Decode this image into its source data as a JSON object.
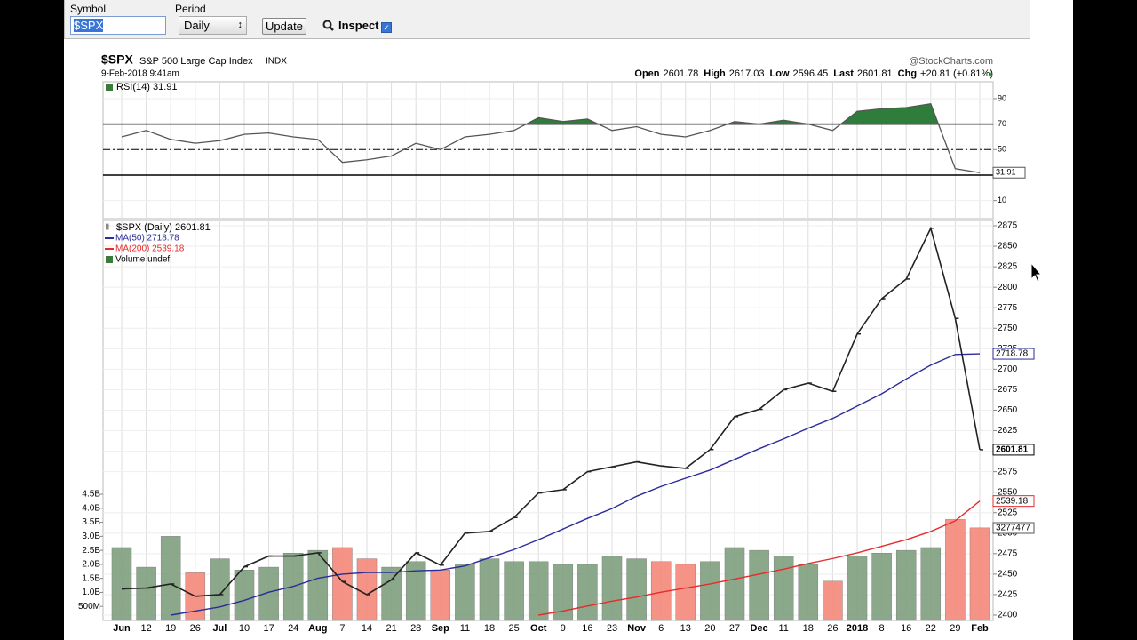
{
  "toolbar": {
    "symbol_label": "Symbol",
    "symbol_value": "$SPX",
    "period_label": "Period",
    "period_value": "Daily",
    "update": "Update",
    "inspect": "Inspect"
  },
  "header": {
    "symbol": "$SPX",
    "name": "S&P 500 Large Cap Index",
    "exchange": "INDX",
    "timestamp": "9-Feb-2018 9:41am",
    "brand": "@StockCharts.com",
    "quote": [
      {
        "label": "Open",
        "value": "2601.78"
      },
      {
        "label": "High",
        "value": "2617.03"
      },
      {
        "label": "Low",
        "value": "2596.45"
      },
      {
        "label": "Last",
        "value": "2601.81"
      },
      {
        "label": "Chg",
        "value": "+20.81 (+0.81%)"
      }
    ]
  },
  "chart_data": [
    {
      "type": "line",
      "title": "RSI(14) 31.91",
      "categories": [
        "Jun",
        "12",
        "19",
        "26",
        "Jul",
        "10",
        "17",
        "24",
        "Aug",
        "7",
        "14",
        "21",
        "28",
        "Sep",
        "11",
        "18",
        "25",
        "Oct",
        "9",
        "16",
        "23",
        "Nov",
        "6",
        "13",
        "20",
        "27",
        "Dec",
        "11",
        "18",
        "26",
        "2018",
        "8",
        "16",
        "22",
        "29",
        "Feb"
      ],
      "series": [
        {
          "name": "RSI(14)",
          "color": "#555555",
          "fill_color": "#2e7d3a",
          "values": [
            60,
            65,
            58,
            55,
            57,
            62,
            63,
            60,
            58,
            40,
            42,
            45,
            55,
            50,
            60,
            62,
            65,
            75,
            72,
            74,
            65,
            68,
            62,
            60,
            65,
            72,
            70,
            73,
            70,
            65,
            80,
            82,
            83,
            86,
            35,
            31.91
          ]
        }
      ],
      "ylim": [
        0,
        100
      ],
      "yticks": [
        10,
        30,
        50,
        70,
        90
      ],
      "overbought": 70,
      "midline": 50,
      "oversold": 30,
      "grid": true
    },
    {
      "type": "ohlc-line",
      "title": "$SPX (Daily) 2601.81",
      "categories": [
        "Jun",
        "12",
        "19",
        "26",
        "Jul",
        "10",
        "17",
        "24",
        "Aug",
        "7",
        "14",
        "21",
        "28",
        "Sep",
        "11",
        "18",
        "25",
        "Oct",
        "9",
        "16",
        "23",
        "Nov",
        "6",
        "13",
        "20",
        "27",
        "Dec",
        "11",
        "18",
        "26",
        "2018",
        "8",
        "16",
        "22",
        "29",
        "Feb"
      ],
      "series": [
        {
          "name": "$SPX",
          "color": "#222222",
          "values": [
            2432,
            2433,
            2438,
            2423,
            2425,
            2459,
            2472,
            2472,
            2476,
            2441,
            2425,
            2443,
            2476,
            2461,
            2500,
            2502,
            2519,
            2549,
            2553,
            2575,
            2581,
            2587,
            2582,
            2579,
            2602,
            2642,
            2651,
            2675,
            2683,
            2673,
            2743,
            2786,
            2810,
            2872,
            2762,
            2601.81
          ]
        },
        {
          "name": "MA(50) 2718.78",
          "color": "#2b2b9a",
          "values": [
            null,
            null,
            2400,
            2405,
            2410,
            2418,
            2428,
            2435,
            2445,
            2450,
            2452,
            2452,
            2454,
            2455,
            2460,
            2470,
            2480,
            2492,
            2505,
            2518,
            2530,
            2545,
            2557,
            2567,
            2577,
            2590,
            2603,
            2615,
            2628,
            2640,
            2655,
            2670,
            2688,
            2705,
            2718,
            2718.78
          ]
        },
        {
          "name": "MA(200) 2539.18",
          "color": "#e52b2b",
          "values": [
            null,
            null,
            null,
            null,
            null,
            null,
            null,
            null,
            null,
            null,
            null,
            null,
            null,
            null,
            null,
            null,
            null,
            2400,
            2405,
            2411,
            2417,
            2422,
            2428,
            2433,
            2438,
            2444,
            2450,
            2456,
            2463,
            2469,
            2476,
            2484,
            2492,
            2502,
            2515,
            2539.18
          ]
        },
        {
          "name": "Volume undef",
          "axis": "y2",
          "up_color": "#7f9f7f",
          "down_color": "#f4897a",
          "values": [
            2.6,
            1.9,
            3.0,
            1.7,
            2.2,
            1.8,
            1.9,
            2.4,
            2.5,
            2.6,
            2.2,
            1.9,
            2.1,
            1.8,
            2.0,
            2.2,
            2.1,
            2.1,
            2.0,
            2.0,
            2.3,
            2.2,
            2.1,
            2.0,
            2.1,
            2.6,
            2.5,
            2.3,
            2.0,
            1.4,
            2.3,
            2.4,
            2.5,
            2.6,
            3.6,
            3.3
          ]
        }
      ],
      "volume_box": "3277477",
      "ylim": [
        2400,
        2875
      ],
      "yticks": [
        2400,
        2425,
        2450,
        2475,
        2500,
        2525,
        2550,
        2575,
        2600,
        2625,
        2650,
        2675,
        2700,
        2725,
        2750,
        2775,
        2800,
        2825,
        2850,
        2875
      ],
      "y2lim": [
        0,
        4.5
      ],
      "y2ticks": [
        {
          "value": 0.5,
          "label": "500M"
        },
        {
          "value": 1.0,
          "label": "1.0B"
        },
        {
          "value": 1.5,
          "label": "1.5B"
        },
        {
          "value": 2.0,
          "label": "2.0B"
        },
        {
          "value": 2.5,
          "label": "2.5B"
        },
        {
          "value": 3.0,
          "label": "3.0B"
        },
        {
          "value": 3.5,
          "label": "3.5B"
        },
        {
          "value": 4.0,
          "label": "4.0B"
        },
        {
          "value": 4.5,
          "label": "4.5B"
        }
      ],
      "grid": true
    }
  ]
}
